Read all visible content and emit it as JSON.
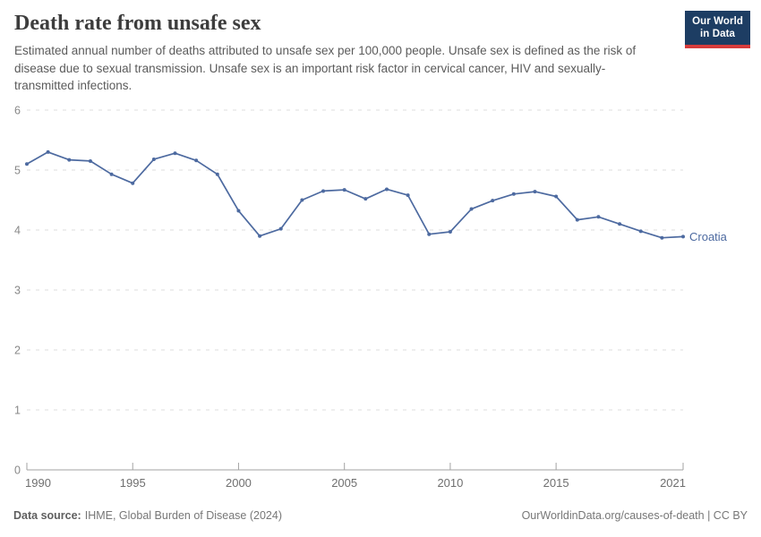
{
  "header": {
    "title": "Death rate from unsafe sex",
    "subtitle": "Estimated annual number of deaths attributed to unsafe sex per 100,000 people. Unsafe sex is defined as the risk of disease due to sexual transmission. Unsafe sex is an important risk factor in cervical cancer, HIV and sexually-transmitted infections.",
    "logo": {
      "line1": "Our World",
      "line2": "in Data",
      "bg_color": "#1d3d63",
      "accent_color": "#d73c3c"
    }
  },
  "chart_data": {
    "type": "line",
    "title": "Death rate from unsafe sex",
    "x": [
      1990,
      1991,
      1992,
      1993,
      1994,
      1995,
      1996,
      1997,
      1998,
      1999,
      2000,
      2001,
      2002,
      2003,
      2004,
      2005,
      2006,
      2007,
      2008,
      2009,
      2010,
      2011,
      2012,
      2013,
      2014,
      2015,
      2016,
      2017,
      2018,
      2019,
      2020,
      2021
    ],
    "series": [
      {
        "name": "Croatia",
        "color": "#4d6aa0",
        "values": [
          5.1,
          5.3,
          5.17,
          5.15,
          4.93,
          4.78,
          5.18,
          5.28,
          5.16,
          4.93,
          4.32,
          3.9,
          4.02,
          4.5,
          4.65,
          4.67,
          4.52,
          4.68,
          4.58,
          3.93,
          3.97,
          4.35,
          4.49,
          4.6,
          4.64,
          4.56,
          4.17,
          4.22,
          4.1,
          3.98,
          3.87,
          3.89
        ]
      }
    ],
    "xticks": [
      1990,
      1995,
      2000,
      2005,
      2010,
      2015,
      2021
    ],
    "yticks": [
      0,
      1,
      2,
      3,
      4,
      5,
      6
    ],
    "xlim": [
      1990,
      2021
    ],
    "ylim": [
      0,
      6
    ],
    "grid": "horizontal-dashed",
    "legend_position": "end-of-line",
    "end_label": "Croatia",
    "colors": {
      "gridline": "#dcdcdc",
      "axis": "#a3a3a3",
      "y_tick_label": "#888888",
      "x_tick_label": "#6f6f6f"
    }
  },
  "footer": {
    "source_label": "Data source:",
    "source_text": "IHME, Global Burden of Disease (2024)",
    "credit": "OurWorldinData.org/causes-of-death | CC BY"
  }
}
